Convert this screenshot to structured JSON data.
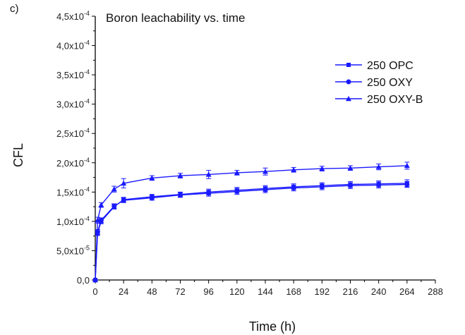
{
  "chart_data": {
    "type": "line",
    "panel_label": "c)",
    "title": "Boron leachability vs. time",
    "xlabel": "Time (h)",
    "ylabel": "CFL",
    "xlim": [
      0,
      288
    ],
    "ylim": [
      0,
      0.00045
    ],
    "x_ticks": [
      0,
      24,
      48,
      72,
      96,
      120,
      144,
      168,
      192,
      216,
      240,
      264,
      288
    ],
    "x_tick_labels": [
      "0",
      "24",
      "48",
      "72",
      "96",
      "120",
      "144",
      "168",
      "192",
      "216",
      "240",
      "264",
      "288"
    ],
    "y_ticks": [
      0,
      5e-05,
      0.0001,
      0.00015,
      0.0002,
      0.00025,
      0.0003,
      0.00035,
      0.0004,
      0.00045
    ],
    "y_tick_labels": [
      {
        "mantissa": "0,0",
        "exponent": ""
      },
      {
        "mantissa": "5,0x10",
        "exponent": "-5"
      },
      {
        "mantissa": "1,0x10",
        "exponent": "-4"
      },
      {
        "mantissa": "1,5x10",
        "exponent": "-4"
      },
      {
        "mantissa": "2,0x10",
        "exponent": "-4"
      },
      {
        "mantissa": "2,5x10",
        "exponent": "-4"
      },
      {
        "mantissa": "3,0x10",
        "exponent": "-4"
      },
      {
        "mantissa": "3,5x10",
        "exponent": "-4"
      },
      {
        "mantissa": "4,0x10",
        "exponent": "-4"
      },
      {
        "mantissa": "4,5x10",
        "exponent": "-4"
      }
    ],
    "grid": false,
    "legend_position": "top-right",
    "line_color": "#1a1aff",
    "series": [
      {
        "name": "250 OPC",
        "marker": "square",
        "x": [
          0,
          2,
          5,
          16,
          24,
          48,
          72,
          96,
          120,
          144,
          168,
          192,
          216,
          240,
          264
        ],
        "y": [
          0,
          8e-05,
          0.0001,
          0.000125,
          0.000137,
          0.000142,
          0.000146,
          0.00015,
          0.000153,
          0.000156,
          0.000159,
          0.000161,
          0.000163,
          0.000164,
          0.000165
        ],
        "err": [
          0,
          4e-06,
          4e-06,
          4e-06,
          4e-06,
          4e-06,
          4e-06,
          5e-06,
          5e-06,
          5e-06,
          5e-06,
          5e-06,
          5e-06,
          5e-06,
          6e-06
        ]
      },
      {
        "name": "250 OXY",
        "marker": "circle",
        "x": [
          0,
          2,
          5,
          16,
          24,
          48,
          72,
          96,
          120,
          144,
          168,
          192,
          216,
          240,
          264
        ],
        "y": [
          0,
          8.2e-05,
          0.000102,
          0.000126,
          0.000136,
          0.00014,
          0.000145,
          0.000148,
          0.000151,
          0.000154,
          0.000157,
          0.000159,
          0.000161,
          0.000162,
          0.000163
        ],
        "err": [
          0,
          4e-06,
          4e-06,
          4e-06,
          4e-06,
          4e-06,
          4e-06,
          5e-06,
          5e-06,
          5e-06,
          5e-06,
          5e-06,
          5e-06,
          5e-06,
          5e-06
        ]
      },
      {
        "name": "250 OXY-B",
        "marker": "triangle",
        "x": [
          0,
          2,
          5,
          16,
          24,
          48,
          72,
          96,
          120,
          144,
          168,
          192,
          216,
          240,
          264
        ],
        "y": [
          0,
          0.000102,
          0.000128,
          0.000155,
          0.000165,
          0.000174,
          0.000178,
          0.00018,
          0.000183,
          0.000185,
          0.000188,
          0.00019,
          0.000191,
          0.000193,
          0.000195
        ],
        "err": [
          0,
          5e-06,
          4e-06,
          5e-06,
          8e-06,
          4e-06,
          4e-06,
          7e-06,
          4e-06,
          6e-06,
          4e-06,
          4e-06,
          4e-06,
          5e-06,
          6e-06
        ]
      }
    ]
  }
}
